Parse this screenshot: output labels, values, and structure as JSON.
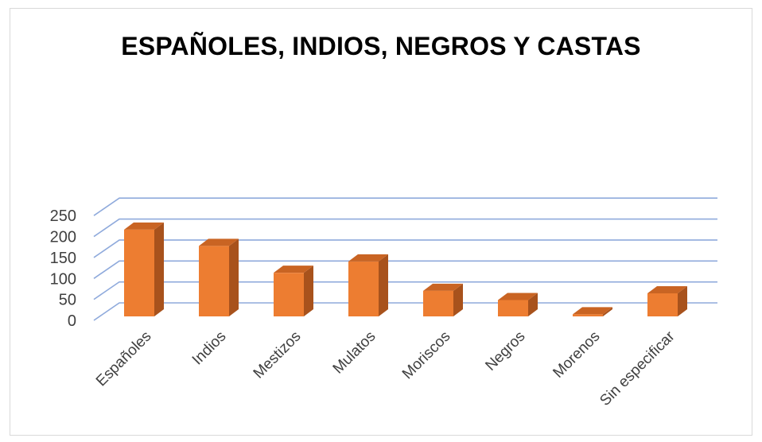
{
  "chart_data": {
    "type": "bar",
    "title": "ESPAÑOLES, INDIOS, NEGROS Y CASTAS",
    "categories": [
      "Españoles",
      "Indios",
      "Mestizos",
      "Mulatos",
      "Moriscos",
      "Negros",
      "Morenos",
      "Sin especificar"
    ],
    "values": [
      207,
      168,
      104,
      131,
      61,
      39,
      5,
      55
    ],
    "ylim": [
      0,
      250
    ],
    "yticks": [
      0,
      50,
      100,
      150,
      200,
      250
    ],
    "grid": true,
    "three_d": true,
    "colors": {
      "bar_front": "#ed7d31",
      "bar_side": "#a8521c",
      "bar_top": "#c96423",
      "grid": "#8faadc"
    }
  }
}
